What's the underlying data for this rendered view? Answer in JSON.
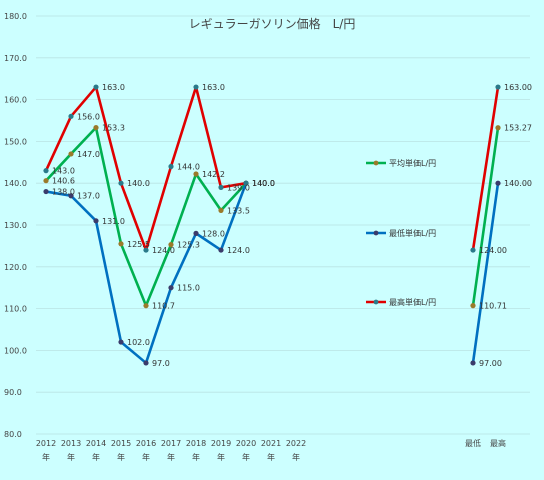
{
  "chart_data": {
    "type": "line",
    "title": "レギュラーガソリン価格　L/円",
    "ylim": [
      80,
      180
    ],
    "yticks": [
      "80.0",
      "90.0",
      "100.0",
      "110.0",
      "120.0",
      "130.0",
      "140.0",
      "150.0",
      "160.0",
      "170.0",
      "180.0"
    ],
    "categories": [
      "2012",
      "2013",
      "2014",
      "2015",
      "2016",
      "2017",
      "2018",
      "2019",
      "2020",
      "2021",
      "2022"
    ],
    "category_suffix": "年",
    "series": [
      {
        "name": "平均単価L/円",
        "color": "#00b050",
        "values": [
          140.6,
          147.0,
          153.3,
          125.5,
          110.7,
          125.3,
          142.2,
          133.5,
          140.0,
          null,
          null
        ],
        "labels": [
          "140.6",
          "147.0",
          "153.3",
          "125.5",
          "110.7",
          "125.3",
          "142.2",
          "133.5",
          "140.0",
          "",
          ""
        ]
      },
      {
        "name": "最低単価L/円",
        "color": "#0070c0",
        "values": [
          138.0,
          137.0,
          131.0,
          102.0,
          97.0,
          115.0,
          128.0,
          124.0,
          140.0,
          null,
          null
        ],
        "labels": [
          "138.0",
          "137.0",
          "131.0",
          "102.0",
          "97.0",
          "115.0",
          "128.0",
          "124.0",
          "140.0",
          "",
          ""
        ]
      },
      {
        "name": "最高単価L/円",
        "color": "#e00000",
        "values": [
          143.0,
          156.0,
          163.0,
          140.0,
          124.0,
          144.0,
          163.0,
          139.0,
          140.0,
          null,
          null
        ],
        "labels": [
          "143.0",
          "156.0",
          "163.0",
          "140.0",
          "124.0",
          "144.0",
          "163.0",
          "139.0",
          "140.0",
          "",
          ""
        ]
      }
    ],
    "summary": {
      "categories": [
        "最低",
        "最高"
      ],
      "series": [
        {
          "name": "平均単価L/円",
          "color": "#00b050",
          "values": [
            110.71,
            153.27
          ],
          "labels": [
            "110.71",
            "153.27"
          ]
        },
        {
          "name": "最低単価L/円",
          "color": "#0070c0",
          "values": [
            97.0,
            140.0
          ],
          "labels": [
            "97.00",
            "140.00"
          ]
        },
        {
          "name": "最高単価L/円",
          "color": "#e00000",
          "values": [
            124.0,
            163.0
          ],
          "labels": [
            "124.00",
            "163.00"
          ]
        }
      ]
    },
    "grid": true,
    "legend": "right"
  }
}
